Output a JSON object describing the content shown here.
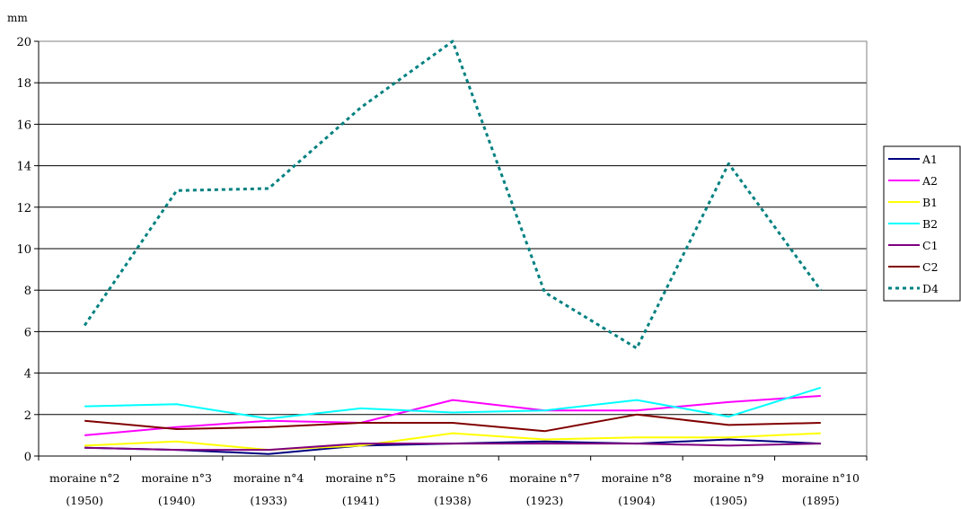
{
  "chart_data": {
    "type": "line",
    "title": "",
    "xlabel": "",
    "ylabel": "mm",
    "ylim": [
      0,
      20
    ],
    "yticks": [
      0,
      2,
      4,
      6,
      8,
      10,
      12,
      14,
      16,
      18,
      20
    ],
    "grid": true,
    "legend_placement": "right",
    "categories": [
      [
        "moraine n°2",
        "(1950)"
      ],
      [
        "moraine n°3",
        "(1940)"
      ],
      [
        "moraine n°4",
        "(1933)"
      ],
      [
        "moraine n°5",
        "(1941)"
      ],
      [
        "moraine n°6",
        "(1938)"
      ],
      [
        "moraine n°7",
        "(1923)"
      ],
      [
        "moraine n°8",
        "(1904)"
      ],
      [
        "moraine n°9",
        "(1905)"
      ],
      [
        "moraine n°10",
        "(1895)"
      ]
    ],
    "series": [
      {
        "name": "A1",
        "color": "#000080",
        "dash": false,
        "values": [
          0.4,
          0.3,
          0.1,
          0.5,
          0.6,
          0.7,
          0.6,
          0.8,
          0.6
        ]
      },
      {
        "name": "A2",
        "color": "#ff00ff",
        "dash": false,
        "values": [
          1.0,
          1.4,
          1.7,
          1.6,
          2.7,
          2.2,
          2.2,
          2.6,
          2.9
        ]
      },
      {
        "name": "B1",
        "color": "#ffff00",
        "dash": false,
        "values": [
          0.5,
          0.7,
          0.3,
          0.5,
          1.1,
          0.8,
          0.9,
          0.9,
          1.1
        ]
      },
      {
        "name": "B2",
        "color": "#00ffff",
        "dash": false,
        "values": [
          2.4,
          2.5,
          1.8,
          2.3,
          2.1,
          2.2,
          2.7,
          1.9,
          3.3
        ]
      },
      {
        "name": "C1",
        "color": "#800080",
        "dash": false,
        "values": [
          0.4,
          0.3,
          0.3,
          0.6,
          0.6,
          0.6,
          0.6,
          0.5,
          0.6
        ]
      },
      {
        "name": "C2",
        "color": "#800000",
        "dash": false,
        "values": [
          1.7,
          1.3,
          1.4,
          1.6,
          1.6,
          1.2,
          2.0,
          1.5,
          1.6
        ]
      },
      {
        "name": "D4",
        "color": "#008080",
        "dash": true,
        "values": [
          6.3,
          12.8,
          12.9,
          16.8,
          20.0,
          7.9,
          5.2,
          14.1,
          8.0
        ]
      }
    ]
  }
}
